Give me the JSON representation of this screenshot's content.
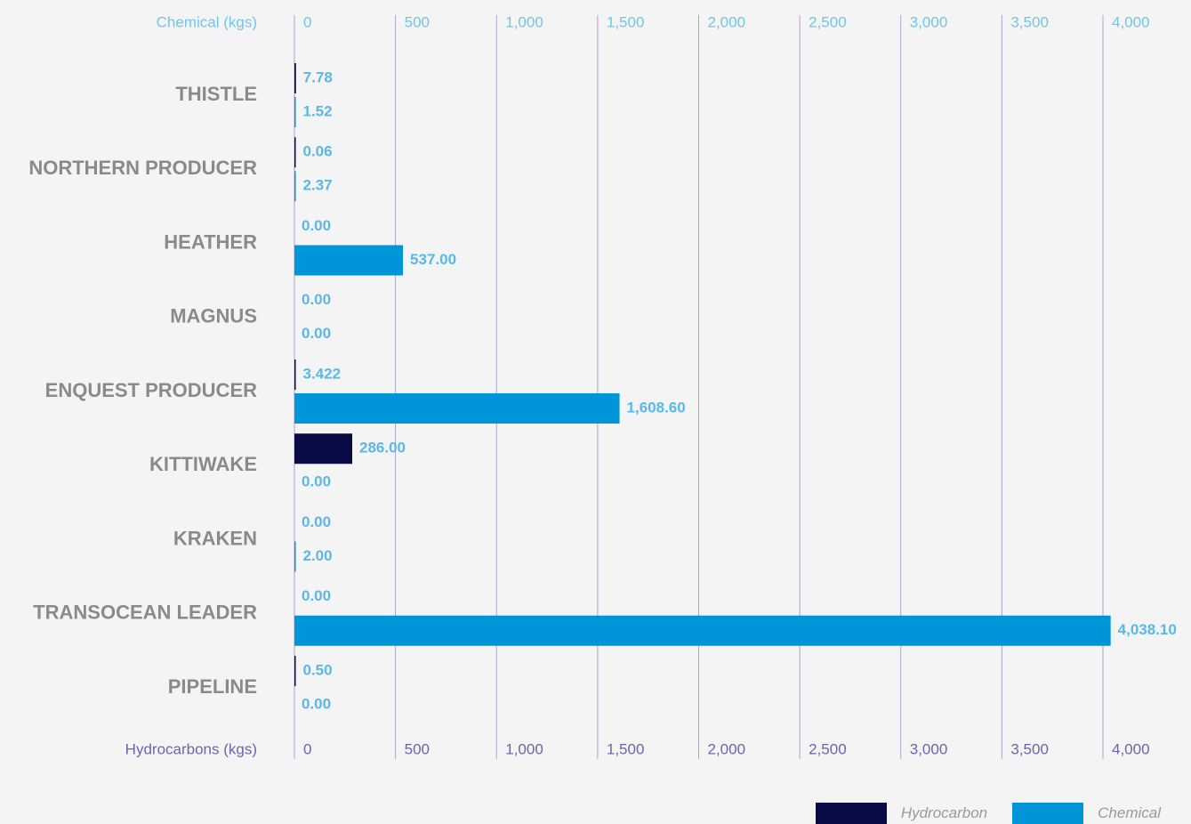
{
  "chart_data": {
    "type": "bar",
    "orientation": "horizontal",
    "categories": [
      "THISTLE",
      "NORTHERN PRODUCER",
      "HEATHER",
      "MAGNUS",
      "ENQUEST PRODUCER",
      "KITTIWAKE",
      "KRAKEN",
      "TRANSOCEAN LEADER",
      "PIPELINE"
    ],
    "series": [
      {
        "name": "Hydrocarbon",
        "values": [
          7.78,
          0.06,
          0.0,
          0.0,
          3.422,
          286.0,
          0.0,
          0.0,
          0.5
        ],
        "labels": [
          "7.78",
          "0.06",
          "0.00",
          "0.00",
          "3.422",
          "286.00",
          "0.00",
          "0.00",
          "0.50"
        ],
        "color": "#0a0a45"
      },
      {
        "name": "Chemical",
        "values": [
          1.52,
          2.37,
          537.0,
          0.0,
          1608.6,
          0.0,
          2.0,
          4038.1,
          0.0
        ],
        "labels": [
          "1.52",
          "2.37",
          "537.00",
          "0.00",
          "1,608.60",
          "0.00",
          "2.00",
          "4,038.10",
          "0.00"
        ],
        "color": "#0095d9"
      }
    ],
    "top_axis_title": "Chemical (kgs)",
    "bottom_axis_title": "Hydrocarbons (kgs)",
    "ticks": [
      0,
      500,
      1000,
      1500,
      2000,
      2500,
      3000,
      3500,
      4000
    ],
    "tick_labels": [
      "0",
      "500",
      "1,000",
      "1,500",
      "2,000",
      "2,500",
      "3,000",
      "3,500",
      "4,000"
    ],
    "xlim": [
      0,
      4000
    ],
    "grid": true,
    "legend_position": "bottom-right",
    "colors": {
      "grid": "#a8a4d0",
      "top_axis_text": "#6ec6ea",
      "bottom_axis_text": "#6b66a8",
      "category_text": "#8a8a8a",
      "value_text": "#5ab8e6"
    }
  }
}
